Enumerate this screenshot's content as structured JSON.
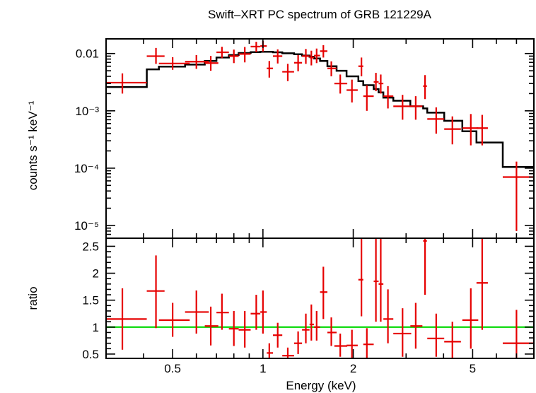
{
  "colors": {
    "data": "#e60000",
    "model": "#000000",
    "unity": "#22dd22"
  },
  "chart_data": [
    {
      "panel": "spectrum",
      "type": "scatter",
      "title": "Swift–XRT PC spectrum of GRB 121229A",
      "xlabel": "",
      "ylabel": "counts s⁻¹ keV⁻¹",
      "x_scale": "log",
      "y_scale": "log",
      "xlim": [
        0.3,
        8.0
      ],
      "ylim": [
        6e-06,
        0.018
      ],
      "yticks": [
        {
          "value": 0.01,
          "label": "0.01"
        },
        {
          "value": 0.001,
          "label": "10⁻³"
        },
        {
          "value": 0.0001,
          "label": "10⁻⁴"
        },
        {
          "value": 1e-05,
          "label": "10⁻⁵"
        }
      ],
      "data": [
        {
          "x": 0.34,
          "xlo": 0.3,
          "xhi": 0.41,
          "y": 0.0031,
          "ylo": 0.002,
          "yhi": 0.0045
        },
        {
          "x": 0.44,
          "xlo": 0.41,
          "xhi": 0.47,
          "y": 0.009,
          "ylo": 0.0066,
          "yhi": 0.0125
        },
        {
          "x": 0.5,
          "xlo": 0.45,
          "xhi": 0.57,
          "y": 0.0067,
          "ylo": 0.0052,
          "yhi": 0.0086
        },
        {
          "x": 0.6,
          "xlo": 0.55,
          "xhi": 0.66,
          "y": 0.0072,
          "ylo": 0.0054,
          "yhi": 0.0094
        },
        {
          "x": 0.67,
          "xlo": 0.64,
          "xhi": 0.71,
          "y": 0.0068,
          "ylo": 0.005,
          "yhi": 0.0091
        },
        {
          "x": 0.73,
          "xlo": 0.7,
          "xhi": 0.77,
          "y": 0.0105,
          "ylo": 0.0083,
          "yhi": 0.0131
        },
        {
          "x": 0.8,
          "xlo": 0.77,
          "xhi": 0.83,
          "y": 0.009,
          "ylo": 0.0068,
          "yhi": 0.0117
        },
        {
          "x": 0.87,
          "xlo": 0.83,
          "xhi": 0.91,
          "y": 0.0098,
          "ylo": 0.007,
          "yhi": 0.013
        },
        {
          "x": 0.95,
          "xlo": 0.91,
          "xhi": 0.98,
          "y": 0.0132,
          "ylo": 0.0105,
          "yhi": 0.016
        },
        {
          "x": 1.0,
          "xlo": 0.98,
          "xhi": 1.03,
          "y": 0.0135,
          "ylo": 0.0108,
          "yhi": 0.0165
        },
        {
          "x": 1.05,
          "xlo": 1.03,
          "xhi": 1.08,
          "y": 0.0055,
          "ylo": 0.0038,
          "yhi": 0.0074
        },
        {
          "x": 1.12,
          "xlo": 1.08,
          "xhi": 1.16,
          "y": 0.009,
          "ylo": 0.0067,
          "yhi": 0.0118
        },
        {
          "x": 1.21,
          "xlo": 1.16,
          "xhi": 1.27,
          "y": 0.0048,
          "ylo": 0.0033,
          "yhi": 0.0066
        },
        {
          "x": 1.31,
          "xlo": 1.27,
          "xhi": 1.35,
          "y": 0.0069,
          "ylo": 0.0049,
          "yhi": 0.0094
        },
        {
          "x": 1.39,
          "xlo": 1.35,
          "xhi": 1.43,
          "y": 0.009,
          "ylo": 0.0066,
          "yhi": 0.012
        },
        {
          "x": 1.45,
          "xlo": 1.43,
          "xhi": 1.48,
          "y": 0.0085,
          "ylo": 0.0062,
          "yhi": 0.0112
        },
        {
          "x": 1.51,
          "xlo": 1.48,
          "xhi": 1.55,
          "y": 0.0092,
          "ylo": 0.0068,
          "yhi": 0.0122
        },
        {
          "x": 1.59,
          "xlo": 1.55,
          "xhi": 1.64,
          "y": 0.011,
          "ylo": 0.0085,
          "yhi": 0.014
        },
        {
          "x": 1.69,
          "xlo": 1.64,
          "xhi": 1.76,
          "y": 0.0055,
          "ylo": 0.004,
          "yhi": 0.0073
        },
        {
          "x": 1.81,
          "xlo": 1.73,
          "xhi": 1.91,
          "y": 0.003,
          "ylo": 0.002,
          "yhi": 0.0043
        },
        {
          "x": 1.98,
          "xlo": 1.9,
          "xhi": 2.07,
          "y": 0.0023,
          "ylo": 0.0014,
          "yhi": 0.0035
        },
        {
          "x": 2.13,
          "xlo": 2.08,
          "xhi": 2.16,
          "y": 0.006,
          "ylo": 0.004,
          "yhi": 0.0085
        },
        {
          "x": 2.22,
          "xlo": 2.16,
          "xhi": 2.34,
          "y": 0.0018,
          "ylo": 0.001,
          "yhi": 0.0028
        },
        {
          "x": 2.38,
          "xlo": 2.34,
          "xhi": 2.43,
          "y": 0.0032,
          "ylo": 0.0022,
          "yhi": 0.0046
        },
        {
          "x": 2.47,
          "xlo": 2.43,
          "xhi": 2.52,
          "y": 0.003,
          "ylo": 0.002,
          "yhi": 0.0043
        },
        {
          "x": 2.61,
          "xlo": 2.52,
          "xhi": 2.72,
          "y": 0.0018,
          "ylo": 0.0011,
          "yhi": 0.0027
        },
        {
          "x": 2.92,
          "xlo": 2.72,
          "xhi": 3.12,
          "y": 0.0012,
          "ylo": 0.0007,
          "yhi": 0.0019
        },
        {
          "x": 3.23,
          "xlo": 3.1,
          "xhi": 3.4,
          "y": 0.0012,
          "ylo": 0.0007,
          "yhi": 0.0018
        },
        {
          "x": 3.47,
          "xlo": 3.42,
          "xhi": 3.52,
          "y": 0.0027,
          "ylo": 0.0016,
          "yhi": 0.0042
        },
        {
          "x": 3.78,
          "xlo": 3.53,
          "xhi": 4.02,
          "y": 0.00072,
          "ylo": 0.0004,
          "yhi": 0.00115
        },
        {
          "x": 4.28,
          "xlo": 4.02,
          "xhi": 4.57,
          "y": 0.00048,
          "ylo": 0.00026,
          "yhi": 0.0008
        },
        {
          "x": 4.93,
          "xlo": 4.62,
          "xhi": 5.22,
          "y": 0.0005,
          "ylo": 0.00025,
          "yhi": 0.00088
        },
        {
          "x": 5.38,
          "xlo": 5.15,
          "xhi": 5.62,
          "y": 0.0005,
          "ylo": 0.00025,
          "yhi": 0.00085
        },
        {
          "x": 7.0,
          "xlo": 6.3,
          "xhi": 8.0,
          "y": 7e-05,
          "ylo": 8e-06,
          "yhi": 0.00013
        }
      ],
      "model": [
        {
          "x0": 0.3,
          "x1": 0.41,
          "y": 0.0026
        },
        {
          "x0": 0.41,
          "x1": 0.45,
          "y": 0.0053
        },
        {
          "x0": 0.45,
          "x1": 0.55,
          "y": 0.0059
        },
        {
          "x0": 0.55,
          "x1": 0.64,
          "y": 0.0064
        },
        {
          "x0": 0.64,
          "x1": 0.7,
          "y": 0.0074
        },
        {
          "x0": 0.7,
          "x1": 0.77,
          "y": 0.0085
        },
        {
          "x0": 0.77,
          "x1": 0.83,
          "y": 0.0094
        },
        {
          "x0": 0.83,
          "x1": 0.91,
          "y": 0.0102
        },
        {
          "x0": 0.91,
          "x1": 0.98,
          "y": 0.0106
        },
        {
          "x0": 0.98,
          "x1": 1.08,
          "y": 0.0107
        },
        {
          "x0": 1.08,
          "x1": 1.16,
          "y": 0.0105
        },
        {
          "x0": 1.16,
          "x1": 1.27,
          "y": 0.0101
        },
        {
          "x0": 1.27,
          "x1": 1.35,
          "y": 0.0097
        },
        {
          "x0": 1.35,
          "x1": 1.43,
          "y": 0.0092
        },
        {
          "x0": 1.43,
          "x1": 1.48,
          "y": 0.0088
        },
        {
          "x0": 1.48,
          "x1": 1.55,
          "y": 0.0082
        },
        {
          "x0": 1.55,
          "x1": 1.64,
          "y": 0.0074
        },
        {
          "x0": 1.64,
          "x1": 1.76,
          "y": 0.006
        },
        {
          "x0": 1.76,
          "x1": 1.9,
          "y": 0.005
        },
        {
          "x0": 1.9,
          "x1": 2.08,
          "y": 0.004
        },
        {
          "x0": 2.08,
          "x1": 2.16,
          "y": 0.0033
        },
        {
          "x0": 2.16,
          "x1": 2.34,
          "y": 0.0028
        },
        {
          "x0": 2.34,
          "x1": 2.43,
          "y": 0.0024
        },
        {
          "x0": 2.43,
          "x1": 2.52,
          "y": 0.0021
        },
        {
          "x0": 2.52,
          "x1": 2.72,
          "y": 0.0017
        },
        {
          "x0": 2.72,
          "x1": 3.1,
          "y": 0.0015
        },
        {
          "x0": 3.1,
          "x1": 3.42,
          "y": 0.0012
        },
        {
          "x0": 3.42,
          "x1": 3.53,
          "y": 0.0011
        },
        {
          "x0": 3.53,
          "x1": 4.02,
          "y": 0.00093
        },
        {
          "x0": 4.02,
          "x1": 4.62,
          "y": 0.00067
        },
        {
          "x0": 4.62,
          "x1": 5.15,
          "y": 0.00044
        },
        {
          "x0": 5.15,
          "x1": 5.62,
          "y": 0.00028
        },
        {
          "x0": 5.62,
          "x1": 6.3,
          "y": 0.00028
        },
        {
          "x0": 6.3,
          "x1": 8.0,
          "y": 0.000105
        }
      ]
    },
    {
      "panel": "ratio",
      "type": "scatter",
      "xlabel": "Energy (keV)",
      "ylabel": "ratio",
      "x_scale": "log",
      "y_scale": "linear",
      "xlim": [
        0.3,
        8.0
      ],
      "ylim": [
        0.42,
        2.65
      ],
      "xticks": [
        {
          "value": 0.5,
          "label": "0.5"
        },
        {
          "value": 1,
          "label": "1"
        },
        {
          "value": 2,
          "label": "2"
        },
        {
          "value": 5,
          "label": "5"
        }
      ],
      "yticks": [
        {
          "value": 0.5,
          "label": "0.5"
        },
        {
          "value": 1,
          "label": "1"
        },
        {
          "value": 1.5,
          "label": "1.5"
        },
        {
          "value": 2,
          "label": "2"
        },
        {
          "value": 2.5,
          "label": "2.5"
        }
      ],
      "reference_line": 1,
      "data": [
        {
          "x": 0.34,
          "xlo": 0.3,
          "xhi": 0.41,
          "y": 1.15,
          "ylo": 0.58,
          "yhi": 1.72
        },
        {
          "x": 0.44,
          "xlo": 0.41,
          "xhi": 0.47,
          "y": 1.67,
          "ylo": 0.98,
          "yhi": 2.33
        },
        {
          "x": 0.5,
          "xlo": 0.45,
          "xhi": 0.57,
          "y": 1.13,
          "ylo": 0.82,
          "yhi": 1.45
        },
        {
          "x": 0.6,
          "xlo": 0.55,
          "xhi": 0.66,
          "y": 1.28,
          "ylo": 0.88,
          "yhi": 1.68
        },
        {
          "x": 0.67,
          "xlo": 0.64,
          "xhi": 0.71,
          "y": 1.02,
          "ylo": 0.66,
          "yhi": 1.38
        },
        {
          "x": 0.73,
          "xlo": 0.7,
          "xhi": 0.77,
          "y": 1.27,
          "ylo": 0.95,
          "yhi": 1.62
        },
        {
          "x": 0.8,
          "xlo": 0.77,
          "xhi": 0.83,
          "y": 0.97,
          "ylo": 0.65,
          "yhi": 1.3
        },
        {
          "x": 0.87,
          "xlo": 0.83,
          "xhi": 0.91,
          "y": 0.95,
          "ylo": 0.62,
          "yhi": 1.3
        },
        {
          "x": 0.95,
          "xlo": 0.91,
          "xhi": 0.98,
          "y": 1.25,
          "ylo": 0.95,
          "yhi": 1.6
        },
        {
          "x": 1.0,
          "xlo": 0.98,
          "xhi": 1.03,
          "y": 1.28,
          "ylo": 0.88,
          "yhi": 1.68
        },
        {
          "x": 1.05,
          "xlo": 1.03,
          "xhi": 1.08,
          "y": 0.52,
          "ylo": 0.35,
          "yhi": 0.7
        },
        {
          "x": 1.12,
          "xlo": 1.08,
          "xhi": 1.16,
          "y": 0.85,
          "ylo": 0.62,
          "yhi": 1.08
        },
        {
          "x": 1.21,
          "xlo": 1.16,
          "xhi": 1.27,
          "y": 0.47,
          "ylo": 0.33,
          "yhi": 0.62
        },
        {
          "x": 1.31,
          "xlo": 1.27,
          "xhi": 1.35,
          "y": 0.7,
          "ylo": 0.5,
          "yhi": 0.92
        },
        {
          "x": 1.39,
          "xlo": 1.35,
          "xhi": 1.43,
          "y": 0.95,
          "ylo": 0.7,
          "yhi": 1.25
        },
        {
          "x": 1.45,
          "xlo": 1.43,
          "xhi": 1.48,
          "y": 1.05,
          "ylo": 0.75,
          "yhi": 1.42
        },
        {
          "x": 1.51,
          "xlo": 1.48,
          "xhi": 1.55,
          "y": 1.0,
          "ylo": 0.75,
          "yhi": 1.3
        },
        {
          "x": 1.59,
          "xlo": 1.55,
          "xhi": 1.64,
          "y": 1.65,
          "ylo": 1.15,
          "yhi": 2.12
        },
        {
          "x": 1.69,
          "xlo": 1.64,
          "xhi": 1.76,
          "y": 0.9,
          "ylo": 0.65,
          "yhi": 1.18
        },
        {
          "x": 1.81,
          "xlo": 1.73,
          "xhi": 1.91,
          "y": 0.65,
          "ylo": 0.45,
          "yhi": 0.88
        },
        {
          "x": 1.98,
          "xlo": 1.9,
          "xhi": 2.07,
          "y": 0.66,
          "ylo": 0.38,
          "yhi": 0.95
        },
        {
          "x": 2.13,
          "xlo": 2.08,
          "xhi": 2.16,
          "y": 1.88,
          "ylo": 1.2,
          "yhi": 2.65
        },
        {
          "x": 2.22,
          "xlo": 2.16,
          "xhi": 2.34,
          "y": 0.68,
          "ylo": 0.4,
          "yhi": 0.98
        },
        {
          "x": 2.38,
          "xlo": 2.34,
          "xhi": 2.43,
          "y": 1.85,
          "ylo": 1.1,
          "yhi": 2.65
        },
        {
          "x": 2.47,
          "xlo": 2.43,
          "xhi": 2.52,
          "y": 1.8,
          "ylo": 1.1,
          "yhi": 2.65
        },
        {
          "x": 2.61,
          "xlo": 2.52,
          "xhi": 2.72,
          "y": 1.15,
          "ylo": 0.7,
          "yhi": 1.7
        },
        {
          "x": 2.92,
          "xlo": 2.72,
          "xhi": 3.12,
          "y": 0.88,
          "ylo": 0.45,
          "yhi": 1.35
        },
        {
          "x": 3.23,
          "xlo": 3.1,
          "xhi": 3.4,
          "y": 1.02,
          "ylo": 0.6,
          "yhi": 1.45
        },
        {
          "x": 3.47,
          "xlo": 3.42,
          "xhi": 3.52,
          "y": 2.6,
          "ylo": 1.6,
          "yhi": 2.65
        },
        {
          "x": 3.78,
          "xlo": 3.53,
          "xhi": 4.02,
          "y": 0.79,
          "ylo": 0.45,
          "yhi": 1.25
        },
        {
          "x": 4.28,
          "xlo": 4.02,
          "xhi": 4.57,
          "y": 0.73,
          "ylo": 0.4,
          "yhi": 1.1
        },
        {
          "x": 4.93,
          "xlo": 4.62,
          "xhi": 5.22,
          "y": 1.13,
          "ylo": 0.6,
          "yhi": 1.72
        },
        {
          "x": 5.38,
          "xlo": 5.15,
          "xhi": 5.62,
          "y": 1.82,
          "ylo": 0.95,
          "yhi": 2.65
        },
        {
          "x": 7.0,
          "xlo": 6.3,
          "xhi": 8.0,
          "y": 0.7,
          "ylo": 0.42,
          "yhi": 1.32
        }
      ]
    }
  ]
}
